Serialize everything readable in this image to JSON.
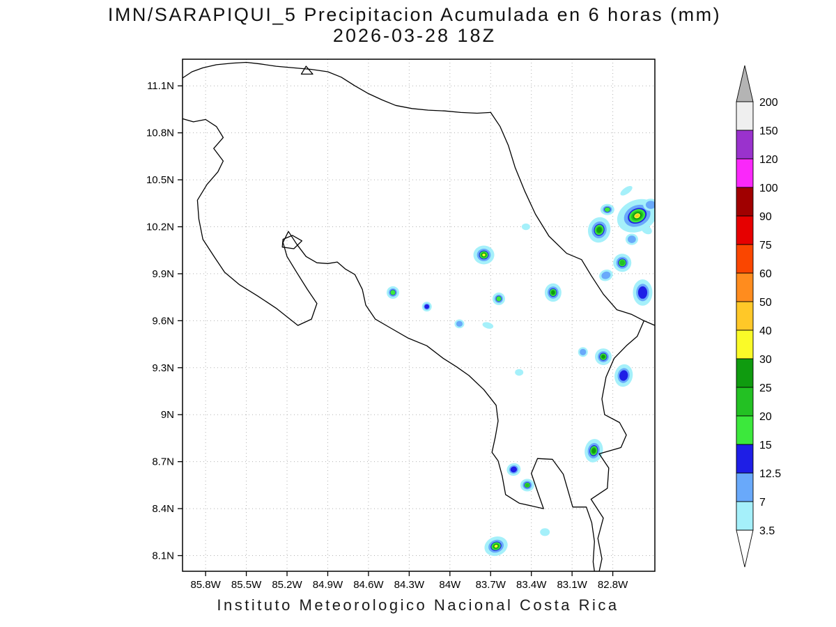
{
  "title": {
    "line1": "IMN/SARAPIQUI_5 Precipitacion Acumulada en 6 horas (mm)",
    "line2": "2026-03-28 18Z"
  },
  "footer": "Instituto Meteorologico Nacional Costa Rica",
  "chart_data": {
    "type": "heatmap",
    "title": "IMN/SARAPIQUI_5 Precipitacion Acumulada en 6 horas (mm)",
    "subtitle": "2026-03-28 18Z",
    "units": "mm",
    "grid": {
      "visible": true,
      "style": "dotted",
      "step_deg": 0.3
    },
    "projection": {
      "lon_west": 85.97,
      "lon_east": 82.49,
      "lat_south": 8.0,
      "lat_north": 11.27
    },
    "x_ticks": [
      "85.8W",
      "85.5W",
      "85.2W",
      "84.9W",
      "84.6W",
      "84.3W",
      "84W",
      "83.7W",
      "83.4W",
      "83.1W",
      "82.8W"
    ],
    "x_tick_lons": [
      85.8,
      85.5,
      85.2,
      84.9,
      84.6,
      84.3,
      84.0,
      83.7,
      83.4,
      83.1,
      82.8
    ],
    "y_ticks": [
      "11.1N",
      "10.8N",
      "10.5N",
      "10.2N",
      "9.9N",
      "9.6N",
      "9.3N",
      "9N",
      "8.7N",
      "8.4N",
      "8.1N"
    ],
    "y_tick_lats": [
      11.1,
      10.8,
      10.5,
      10.2,
      9.9,
      9.6,
      9.3,
      9.0,
      8.7,
      8.4,
      8.1
    ],
    "colorbar": {
      "labels": [
        "200",
        "150",
        "120",
        "100",
        "90",
        "75",
        "60",
        "50",
        "40",
        "30",
        "25",
        "20",
        "15",
        "12.5",
        "7",
        "3.5"
      ],
      "band_colors": [
        "#efefef",
        "#9a32cd",
        "#fa28fa",
        "#a00000",
        "#e60000",
        "#fa4600",
        "#ff8c1e",
        "#ffc828",
        "#fafa28",
        "#0f9b0f",
        "#23c123",
        "#3ce83c",
        "#1e1ee6",
        "#69a9fa",
        "#a5f0fa"
      ],
      "above_color": "#b4b4b4",
      "below_color": "#ffffff",
      "legend_position": "right"
    },
    "cells": [
      {
        "lon": 82.62,
        "lat": 10.27,
        "mm": 40,
        "r": 30,
        "aspect": 0.75,
        "rot": -25
      },
      {
        "lon": 82.52,
        "lat": 10.34,
        "mm": 7,
        "r": 11,
        "aspect": 0.8,
        "rot": 0
      },
      {
        "lon": 82.9,
        "lat": 10.18,
        "mm": 25,
        "r": 16,
        "aspect": 1.15,
        "rot": 15
      },
      {
        "lon": 82.84,
        "lat": 10.31,
        "mm": 15,
        "r": 10,
        "aspect": 0.8,
        "rot": 0
      },
      {
        "lon": 82.7,
        "lat": 10.43,
        "mm": 3.5,
        "r": 10,
        "aspect": 0.45,
        "rot": -35
      },
      {
        "lon": 82.55,
        "lat": 10.18,
        "mm": 3.5,
        "r": 8,
        "aspect": 0.7,
        "rot": 30
      },
      {
        "lon": 82.66,
        "lat": 10.12,
        "mm": 7,
        "r": 9,
        "aspect": 0.9,
        "rot": 0
      },
      {
        "lon": 82.73,
        "lat": 9.97,
        "mm": 20,
        "r": 13,
        "aspect": 1.0,
        "rot": 0
      },
      {
        "lon": 82.85,
        "lat": 9.89,
        "mm": 7,
        "r": 10,
        "aspect": 0.8,
        "rot": -20
      },
      {
        "lon": 82.58,
        "lat": 9.78,
        "mm": 12.5,
        "r": 14,
        "aspect": 1.35,
        "rot": 0
      },
      {
        "lon": 83.75,
        "lat": 10.02,
        "mm": 30,
        "r": 15,
        "aspect": 0.9,
        "rot": 0
      },
      {
        "lon": 83.44,
        "lat": 10.2,
        "mm": 3.5,
        "r": 6,
        "aspect": 0.8,
        "rot": 0
      },
      {
        "lon": 84.42,
        "lat": 9.78,
        "mm": 15,
        "r": 9,
        "aspect": 1.0,
        "rot": 0
      },
      {
        "lon": 84.17,
        "lat": 9.69,
        "mm": 12.5,
        "r": 7,
        "aspect": 1.0,
        "rot": 0
      },
      {
        "lon": 83.64,
        "lat": 9.74,
        "mm": 15,
        "r": 9,
        "aspect": 1.0,
        "rot": 0
      },
      {
        "lon": 83.24,
        "lat": 9.78,
        "mm": 25,
        "r": 12,
        "aspect": 1.1,
        "rot": 0
      },
      {
        "lon": 83.93,
        "lat": 9.58,
        "mm": 7,
        "r": 7,
        "aspect": 0.9,
        "rot": 0
      },
      {
        "lon": 83.72,
        "lat": 9.57,
        "mm": 3.5,
        "r": 8,
        "aspect": 0.55,
        "rot": 15
      },
      {
        "lon": 83.49,
        "lat": 9.27,
        "mm": 3.5,
        "r": 6,
        "aspect": 0.8,
        "rot": 0
      },
      {
        "lon": 83.02,
        "lat": 9.4,
        "mm": 7,
        "r": 7,
        "aspect": 1.0,
        "rot": 0
      },
      {
        "lon": 82.87,
        "lat": 9.37,
        "mm": 25,
        "r": 12,
        "aspect": 1.0,
        "rot": 0
      },
      {
        "lon": 82.72,
        "lat": 9.25,
        "mm": 12.5,
        "r": 13,
        "aspect": 1.25,
        "rot": 10
      },
      {
        "lon": 82.94,
        "lat": 8.77,
        "mm": 25,
        "r": 13,
        "aspect": 1.3,
        "rot": 10
      },
      {
        "lon": 83.53,
        "lat": 8.65,
        "mm": 12.5,
        "r": 10,
        "aspect": 0.9,
        "rot": -15
      },
      {
        "lon": 83.43,
        "lat": 8.55,
        "mm": 20,
        "r": 10,
        "aspect": 0.9,
        "rot": 0
      },
      {
        "lon": 83.66,
        "lat": 8.16,
        "mm": 30,
        "r": 17,
        "aspect": 0.8,
        "rot": -20
      },
      {
        "lon": 83.3,
        "lat": 8.25,
        "mm": 3.5,
        "r": 7,
        "aspect": 0.8,
        "rot": 0
      }
    ],
    "coastlines": [
      [
        [
          85.97,
          11.15
        ],
        [
          85.9,
          11.19
        ],
        [
          85.82,
          11.215
        ],
        [
          85.72,
          11.235
        ],
        [
          85.6,
          11.245
        ],
        [
          85.5,
          11.25
        ],
        [
          85.4,
          11.24
        ],
        [
          85.28,
          11.225
        ],
        [
          85.15,
          11.215
        ],
        [
          85.02,
          11.205
        ],
        [
          84.9,
          11.19
        ],
        [
          84.8,
          11.155
        ],
        [
          84.7,
          11.1
        ],
        [
          84.6,
          11.05
        ],
        [
          84.5,
          11.01
        ],
        [
          84.4,
          10.975
        ],
        [
          84.28,
          10.955
        ],
        [
          84.16,
          10.945
        ],
        [
          84.04,
          10.94
        ],
        [
          83.92,
          10.93
        ],
        [
          83.8,
          10.925
        ],
        [
          83.7,
          10.93
        ]
      ],
      [
        [
          85.06,
          11.225
        ],
        [
          85.095,
          11.175
        ],
        [
          85.01,
          11.175
        ],
        [
          85.06,
          11.225
        ]
      ],
      [
        [
          83.7,
          10.93
        ],
        [
          83.63,
          10.84
        ],
        [
          83.57,
          10.72
        ],
        [
          83.52,
          10.58
        ],
        [
          83.45,
          10.43
        ],
        [
          83.37,
          10.28
        ],
        [
          83.27,
          10.14
        ],
        [
          83.14,
          10.03
        ],
        [
          83.03,
          9.99
        ],
        [
          82.96,
          9.89
        ],
        [
          82.87,
          9.77
        ],
        [
          82.77,
          9.67
        ],
        [
          82.66,
          9.64
        ],
        [
          82.57,
          9.6
        ],
        [
          82.49,
          9.57
        ]
      ],
      [
        [
          82.57,
          9.6
        ],
        [
          82.62,
          9.5
        ],
        [
          82.7,
          9.44
        ],
        [
          82.79,
          9.36
        ],
        [
          82.85,
          9.24
        ],
        [
          82.88,
          9.1
        ],
        [
          82.86,
          9.0
        ],
        [
          82.75,
          8.95
        ],
        [
          82.7,
          8.87
        ],
        [
          82.74,
          8.79
        ],
        [
          82.9,
          8.75
        ],
        [
          82.83,
          8.66
        ],
        [
          82.84,
          8.53
        ],
        [
          82.96,
          8.46
        ],
        [
          82.87,
          8.34
        ],
        [
          82.91,
          8.21
        ],
        [
          82.88,
          8.08
        ],
        [
          82.9,
          8.0
        ]
      ],
      [
        [
          85.97,
          10.89
        ],
        [
          85.89,
          10.87
        ],
        [
          85.8,
          10.885
        ],
        [
          85.72,
          10.84
        ],
        [
          85.67,
          10.77
        ],
        [
          85.74,
          10.7
        ],
        [
          85.67,
          10.62
        ],
        [
          85.71,
          10.55
        ],
        [
          85.79,
          10.47
        ],
        [
          85.86,
          10.37
        ],
        [
          85.85,
          10.25
        ],
        [
          85.82,
          10.12
        ],
        [
          85.73,
          10.0
        ],
        [
          85.66,
          9.91
        ],
        [
          85.55,
          9.83
        ],
        [
          85.42,
          9.76
        ],
        [
          85.28,
          9.68
        ],
        [
          85.12,
          9.57
        ],
        [
          85.02,
          9.61
        ],
        [
          84.98,
          9.71
        ],
        [
          85.05,
          9.8
        ],
        [
          85.13,
          9.91
        ],
        [
          85.2,
          10.01
        ],
        [
          85.23,
          10.1
        ],
        [
          85.19,
          10.17
        ],
        [
          85.13,
          10.09
        ],
        [
          85.06,
          10.01
        ],
        [
          84.98,
          9.97
        ],
        [
          84.9,
          9.965
        ],
        [
          84.83,
          9.975
        ],
        [
          84.77,
          9.93
        ],
        [
          84.7,
          9.895
        ],
        [
          84.645,
          9.8
        ],
        [
          84.62,
          9.7
        ],
        [
          84.55,
          9.61
        ],
        [
          84.44,
          9.555
        ],
        [
          84.31,
          9.49
        ],
        [
          84.17,
          9.44
        ],
        [
          84.05,
          9.36
        ],
        [
          83.95,
          9.305
        ],
        [
          83.86,
          9.25
        ],
        [
          83.75,
          9.16
        ],
        [
          83.66,
          9.06
        ],
        [
          83.645,
          8.96
        ],
        [
          83.665,
          8.86
        ],
        [
          83.69,
          8.76
        ],
        [
          83.645,
          8.705
        ],
        [
          83.615,
          8.61
        ],
        [
          83.59,
          8.49
        ],
        [
          83.49,
          8.435
        ],
        [
          83.31,
          8.4
        ],
        [
          83.355,
          8.51
        ],
        [
          83.4,
          8.625
        ],
        [
          83.355,
          8.72
        ],
        [
          83.245,
          8.715
        ],
        [
          83.165,
          8.62
        ],
        [
          83.125,
          8.5
        ],
        [
          83.095,
          8.41
        ],
        [
          82.995,
          8.41
        ],
        [
          82.955,
          8.31
        ],
        [
          82.935,
          8.19
        ],
        [
          82.945,
          8.06
        ],
        [
          82.935,
          8.0
        ]
      ],
      [
        [
          85.23,
          10.12
        ],
        [
          85.16,
          10.145
        ],
        [
          85.09,
          10.11
        ],
        [
          85.15,
          10.06
        ],
        [
          85.235,
          10.07
        ],
        [
          85.23,
          10.12
        ]
      ]
    ]
  }
}
